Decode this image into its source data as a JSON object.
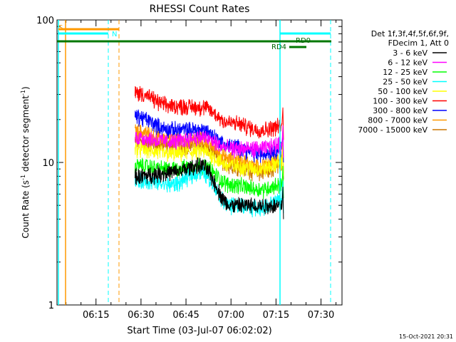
{
  "chart_data": {
    "type": "line",
    "title": "RHESSI Count Rates",
    "xlabel": "Start Time (03-Jul-07 06:02:02)",
    "ylabel_main": "Count Rate (s",
    "ylabel_sup": "-1",
    "ylabel_mid": " detector segment",
    "ylabel_sup2": "-1",
    "ylabel_end": ")",
    "y_scale": "log",
    "ylim": [
      1,
      100
    ],
    "xlim_minutes": [
      362.0,
      397.0
    ],
    "x_ticks": [
      {
        "label": "06:15",
        "minutes": 375
      },
      {
        "label": "06:30",
        "minutes": 390
      },
      {
        "label": "06:45",
        "minutes": 405
      },
      {
        "label": "07:00",
        "minutes": 420
      },
      {
        "label": "07:15",
        "minutes": 435
      },
      {
        "label": "07:30",
        "minutes": 450
      }
    ],
    "y_ticks": [
      {
        "label": "1",
        "value": 1
      },
      {
        "label": "10",
        "value": 10
      },
      {
        "label": "100",
        "value": 100
      }
    ],
    "legend_header": [
      "Det 1f,3f,4f,5f,6f,9f,",
      "FDecim 1, Att 0"
    ],
    "legend_position": "right",
    "series": [
      {
        "name": "3 - 6 keV",
        "color": "#000000",
        "keypoints": [
          [
            388,
            8.0
          ],
          [
            400,
            8.5
          ],
          [
            410,
            9.5
          ],
          [
            420,
            5.0
          ],
          [
            430,
            5.0
          ],
          [
            437,
            5.0
          ]
        ]
      },
      {
        "name": "6 - 12 keV",
        "color": "#ff00ff",
        "keypoints": [
          [
            388,
            15.0
          ],
          [
            400,
            14.0
          ],
          [
            410,
            15.0
          ],
          [
            420,
            12.5
          ],
          [
            430,
            12.5
          ],
          [
            437,
            13.5
          ]
        ]
      },
      {
        "name": "12 - 25 keV",
        "color": "#00ff00",
        "keypoints": [
          [
            388,
            9.5
          ],
          [
            400,
            9.0
          ],
          [
            410,
            9.5
          ],
          [
            420,
            7.0
          ],
          [
            430,
            6.5
          ],
          [
            437,
            7.0
          ]
        ]
      },
      {
        "name": "25 - 50 keV",
        "color": "#00ffff",
        "keypoints": [
          [
            388,
            7.5
          ],
          [
            400,
            7.0
          ],
          [
            410,
            8.5
          ],
          [
            420,
            5.0
          ],
          [
            430,
            4.8
          ],
          [
            437,
            5.5
          ]
        ]
      },
      {
        "name": "50 - 100 keV",
        "color": "#ffff00",
        "keypoints": [
          [
            388,
            12.5
          ],
          [
            400,
            11.5
          ],
          [
            410,
            12.0
          ],
          [
            420,
            9.5
          ],
          [
            430,
            9.0
          ],
          [
            437,
            10.0
          ]
        ]
      },
      {
        "name": "100 - 300 keV",
        "color": "#ff0000",
        "keypoints": [
          [
            388,
            31.0
          ],
          [
            400,
            25.0
          ],
          [
            410,
            24.5
          ],
          [
            420,
            19.0
          ],
          [
            430,
            17.0
          ],
          [
            437,
            18.0
          ]
        ]
      },
      {
        "name": "300 - 800 keV",
        "color": "#0000ff",
        "keypoints": [
          [
            388,
            21.0
          ],
          [
            400,
            17.0
          ],
          [
            410,
            17.0
          ],
          [
            420,
            13.0
          ],
          [
            430,
            11.5
          ],
          [
            437,
            12.5
          ]
        ]
      },
      {
        "name": "800 - 7000 keV",
        "color": "#ff9900",
        "keypoints": [
          [
            388,
            16.5
          ],
          [
            400,
            14.5
          ],
          [
            410,
            14.5
          ],
          [
            420,
            10.5
          ],
          [
            430,
            9.5
          ],
          [
            437,
            10.5
          ]
        ]
      },
      {
        "name": "7000 - 15000 keV",
        "color": "#cc7700",
        "keypoints": [
          [
            388,
            14.0
          ],
          [
            400,
            13.0
          ],
          [
            410,
            13.0
          ],
          [
            420,
            9.5
          ],
          [
            430,
            8.5
          ],
          [
            437,
            9.5
          ]
        ]
      }
    ],
    "annotations": [
      {
        "text": "S",
        "color": "#ff9900"
      },
      {
        "text": "N",
        "color": "#00ffff"
      },
      {
        "text": "RD0",
        "color": "#006400"
      },
      {
        "text": "RD4",
        "color": "#006400"
      }
    ],
    "timestamp": "15-Oct-2021 20:31"
  }
}
